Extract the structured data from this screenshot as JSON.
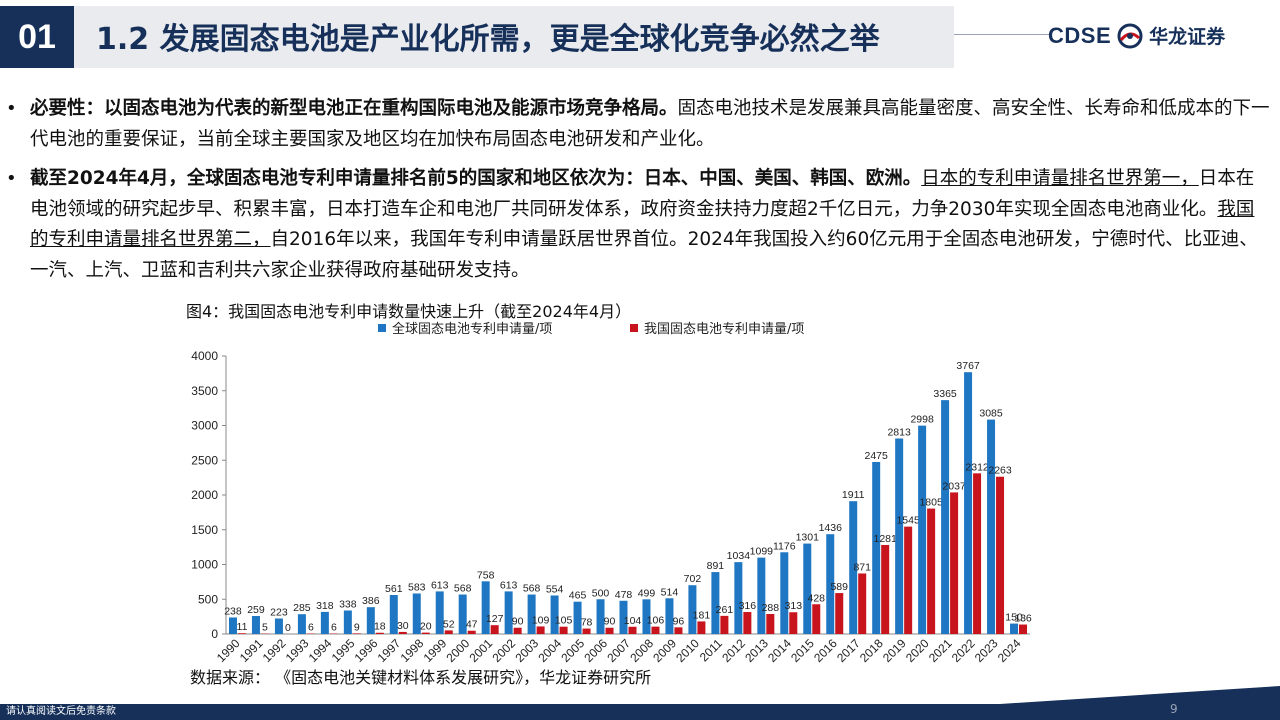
{
  "header": {
    "section_number": "01",
    "title": "1.2 发展固态电池是产业化所需，更是全球化竞争必然之举",
    "logo_en": "CDSE",
    "logo_cn": "华龙证券"
  },
  "bullets": [
    {
      "bullet": "•",
      "lead": "必要性：以固态电池为代表的新型电池正在重构国际电池及能源市场竞争格局。",
      "rest": "固态电池技术是发展兼具高能量密度、高安全性、长寿命和低成本的下一代电池的重要保证，当前全球主要国家及地区均在加快布局固态电池研发和产业化。"
    },
    {
      "bullet": "•",
      "lead": "截至2024年4月，全球固态电池专利申请量排名前5的国家和地区依次为：日本、中国、美国、韩国、欧洲。",
      "u1": "日本的专利申请量排名世界第一，",
      "mid": "日本在电池领域的研究起步早、积累丰富，日本打造车企和电池厂共同研发体系，政府资金扶持力度超2千亿日元，力争2030年实现全固态电池商业化。",
      "u2": "我国的专利申请量排名世界第二，",
      "end": "自2016年以来，我国年专利申请量跃居世界首位。2024年我国投入约60亿元用于全固态电池研发，宁德时代、比亚迪、一汽、上汽、卫蓝和吉利共六家企业获得政府基础研发支持。"
    }
  ],
  "figure_caption": "图4：我国固态电池专利申请数量快速上升（截至2024年4月）",
  "source": "数据来源：  《固态电池关键材料体系发展研究》，华龙证券研究所",
  "footer": {
    "disclaimer": "请认真阅读文后免责条款",
    "page": "9"
  },
  "colors": {
    "navy": "#16305a",
    "global_series": "#1f77c4",
    "china_series": "#c8141c"
  },
  "chart_data": {
    "type": "bar",
    "title": "",
    "xlabel": "",
    "ylabel": "",
    "ylim": [
      0,
      4000
    ],
    "yticks": [
      0,
      500,
      1000,
      1500,
      2000,
      2500,
      3000,
      3500,
      4000
    ],
    "grid": false,
    "legend_position": "top",
    "categories": [
      "1990",
      "1991",
      "1992",
      "1993",
      "1994",
      "1995",
      "1996",
      "1997",
      "1998",
      "1999",
      "2000",
      "2001",
      "2002",
      "2003",
      "2004",
      "2005",
      "2006",
      "2007",
      "2008",
      "2009",
      "2010",
      "2011",
      "2012",
      "2013",
      "2014",
      "2015",
      "2016",
      "2017",
      "2018",
      "2019",
      "2020",
      "2021",
      "2022",
      "2023",
      "2024"
    ],
    "series": [
      {
        "name": "全球固态电池专利申请量/项",
        "color": "#1f77c4",
        "values": [
          238,
          259,
          223,
          285,
          318,
          338,
          386,
          561,
          583,
          613,
          568,
          758,
          613,
          568,
          554,
          465,
          500,
          478,
          499,
          514,
          702,
          891,
          1034,
          1099,
          1176,
          1301,
          1436,
          1911,
          2475,
          2813,
          2998,
          3365,
          3767,
          3085,
          150
        ]
      },
      {
        "name": "我国固态电池专利申请量/项",
        "color": "#c8141c",
        "values": [
          11,
          5,
          0,
          6,
          6,
          9,
          18,
          30,
          20,
          52,
          47,
          127,
          90,
          109,
          105,
          78,
          90,
          104,
          106,
          96,
          181,
          261,
          316,
          288,
          313,
          428,
          589,
          871,
          1281,
          1545,
          1805,
          2037,
          2312,
          2263,
          136
        ]
      }
    ]
  }
}
